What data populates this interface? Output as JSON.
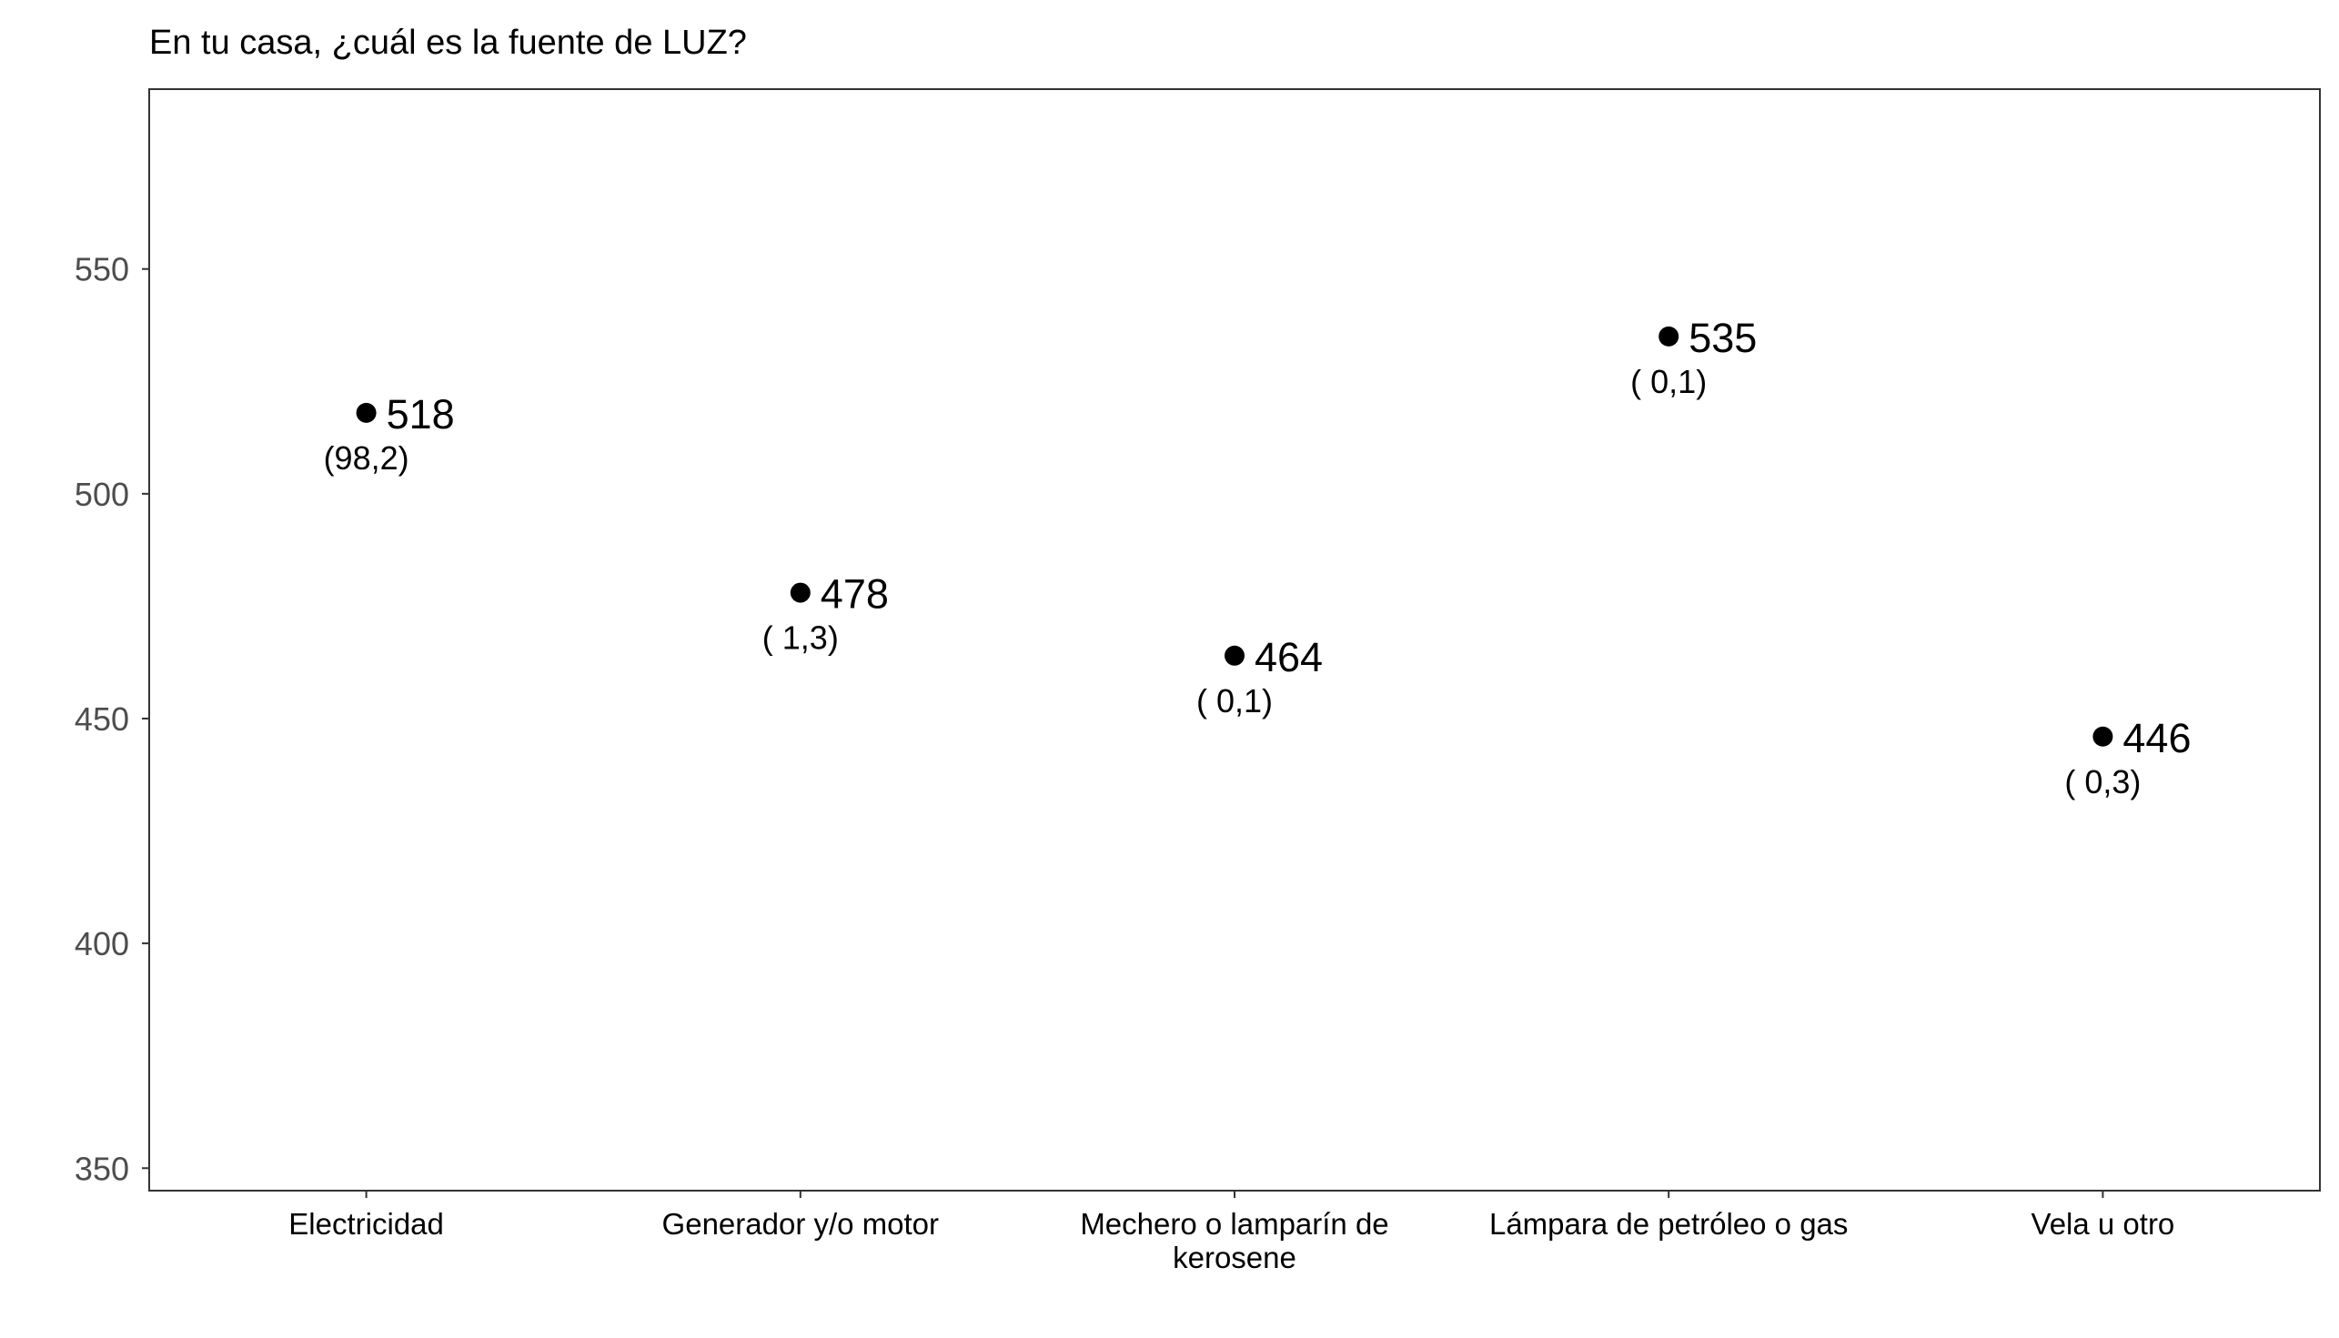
{
  "chart_data": {
    "type": "scatter",
    "title": "En tu casa, ¿cuál es la fuente de LUZ?",
    "xlabel": "",
    "ylabel": "",
    "ylim": [
      345,
      590
    ],
    "yticks": [
      350,
      400,
      450,
      500,
      550
    ],
    "categories": [
      [
        "Electricidad"
      ],
      [
        "Generador y/o motor"
      ],
      [
        "Mechero o lamparín de",
        "kerosene"
      ],
      [
        "Lámpara de petróleo o gas"
      ],
      [
        "Vela u otro"
      ]
    ],
    "values": [
      518,
      478,
      464,
      535,
      446
    ],
    "value_labels": [
      "518",
      "478",
      "464",
      "535",
      "446"
    ],
    "percent_labels": [
      "(98,2)",
      "( 1,3)",
      "( 0,1)",
      "( 0,1)",
      "( 0,3)"
    ],
    "grid": false,
    "legend": "none",
    "point_color": "#000000"
  }
}
